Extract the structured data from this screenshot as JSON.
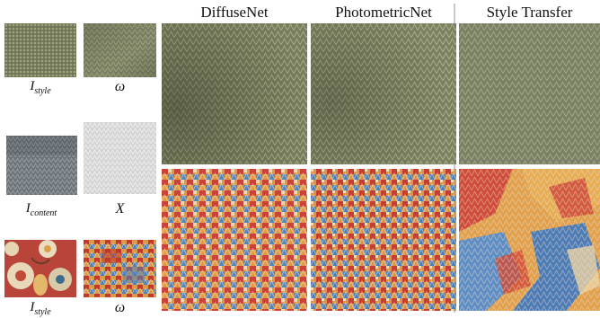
{
  "columns": {
    "col1": "DiffuseNet",
    "col2": "PhotometricNet",
    "col3": "Style Transfer"
  },
  "labels": {
    "row1_left": {
      "base": "I",
      "sub": "style"
    },
    "row1_right": "ω",
    "row2_left": {
      "base": "I",
      "sub": "content"
    },
    "row2_right": "X",
    "row3_left": {
      "base": "I",
      "sub": "style"
    },
    "row3_right": "ω"
  },
  "colors": {
    "olive": "#7f8466",
    "grey": "#6f777c",
    "lightgrey": "#d8d8d8",
    "red": "#c0392b",
    "orange": "#e39a3d",
    "blue": "#4f7fb8",
    "cream": "#e7d8b8"
  }
}
